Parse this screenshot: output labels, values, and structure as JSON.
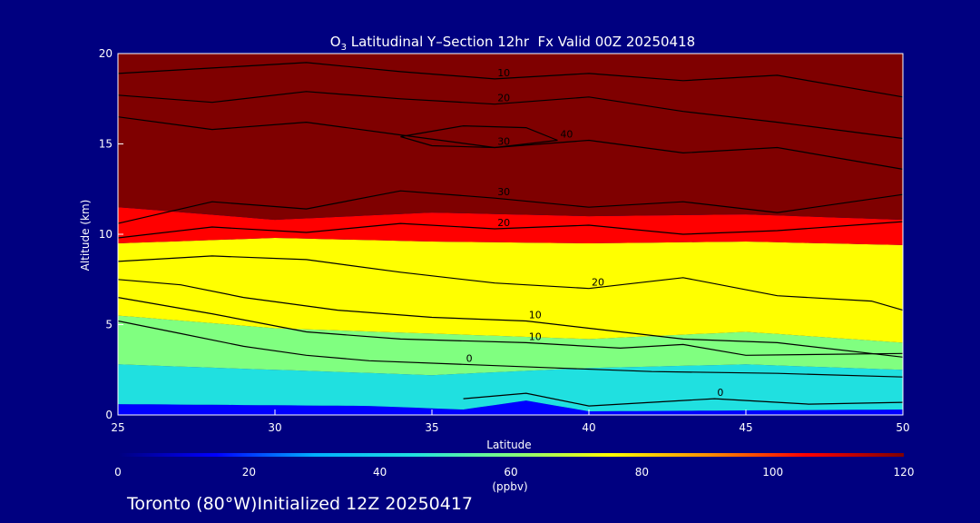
{
  "chart_data": {
    "type": "heatmap",
    "title": "O3 Latitudinal Y-Section 12hr  Fx Valid 00Z 20250418",
    "title_parts": {
      "species": "O",
      "subscript": "3",
      "rest": " Latitudinal Y–Section 12hr  Fx Valid 00Z 20250418"
    },
    "xlabel": "Latitude",
    "ylabel": "Altitude (km)",
    "xlim": [
      25,
      50
    ],
    "ylim": [
      0,
      20
    ],
    "x_ticks": [
      25,
      30,
      35,
      40,
      45,
      50
    ],
    "y_ticks": [
      0,
      5,
      10,
      15,
      20
    ],
    "x_tick_labels": [
      "25",
      "30",
      "35",
      "40",
      "45",
      "50"
    ],
    "y_tick_labels": [
      "0",
      "5",
      "10",
      "15",
      "20"
    ],
    "layers": [
      {
        "name": "surface",
        "z_bottom": 0,
        "z_top_by_lat": [
          [
            25,
            0.6
          ],
          [
            33,
            0.5
          ],
          [
            36,
            0.3
          ],
          [
            38,
            0.8
          ],
          [
            40,
            0.2
          ],
          [
            50,
            0.3
          ]
        ],
        "value": 10
      },
      {
        "name": "low-troposphere",
        "z_top_by_lat": [
          [
            25,
            2.8
          ],
          [
            30,
            2.5
          ],
          [
            35,
            2.2
          ],
          [
            40,
            2.6
          ],
          [
            45,
            2.8
          ],
          [
            50,
            2.5
          ]
        ],
        "value": 45
      },
      {
        "name": "mid-troposphere",
        "z_top_by_lat": [
          [
            25,
            5.5
          ],
          [
            30,
            4.8
          ],
          [
            35,
            4.5
          ],
          [
            40,
            4.2
          ],
          [
            45,
            4.6
          ],
          [
            50,
            4.0
          ]
        ],
        "value": 58
      },
      {
        "name": "upper-troposphere",
        "z_top_by_lat": [
          [
            25,
            9.5
          ],
          [
            30,
            9.8
          ],
          [
            35,
            9.6
          ],
          [
            40,
            9.5
          ],
          [
            45,
            9.6
          ],
          [
            50,
            9.4
          ]
        ],
        "value": 75
      },
      {
        "name": "tropopause",
        "z_top_by_lat": [
          [
            25,
            11.5
          ],
          [
            30,
            10.8
          ],
          [
            35,
            11.2
          ],
          [
            40,
            11.0
          ],
          [
            45,
            11.1
          ],
          [
            50,
            10.8
          ]
        ],
        "value": 100
      },
      {
        "name": "stratosphere",
        "z_top_by_lat": [
          [
            25,
            20
          ],
          [
            50,
            20
          ]
        ],
        "value": 120
      }
    ],
    "contours": [
      {
        "label": "0",
        "points": [
          [
            25,
            5.2
          ],
          [
            27,
            4.5
          ],
          [
            29,
            3.8
          ],
          [
            31,
            3.3
          ],
          [
            33,
            3.0
          ],
          [
            36,
            2.8
          ],
          [
            39,
            2.6
          ],
          [
            42,
            2.4
          ],
          [
            46,
            2.3
          ],
          [
            50,
            2.1
          ]
        ]
      },
      {
        "label": "0",
        "points": [
          [
            36,
            0.9
          ],
          [
            38,
            1.2
          ],
          [
            40,
            0.5
          ],
          [
            44,
            0.9
          ],
          [
            47,
            0.6
          ],
          [
            50,
            0.7
          ]
        ]
      },
      {
        "label": "10",
        "points": [
          [
            25,
            7.5
          ],
          [
            27,
            7.2
          ],
          [
            29,
            6.5
          ],
          [
            32,
            5.8
          ],
          [
            35,
            5.4
          ],
          [
            38,
            5.2
          ],
          [
            40,
            4.8
          ],
          [
            43,
            4.2
          ],
          [
            46,
            4.0
          ],
          [
            50,
            3.2
          ]
        ]
      },
      {
        "label": "10",
        "points": [
          [
            25,
            6.5
          ],
          [
            28,
            5.6
          ],
          [
            31,
            4.6
          ],
          [
            34,
            4.2
          ],
          [
            38,
            4.0
          ],
          [
            41,
            3.7
          ],
          [
            43,
            3.9
          ],
          [
            45,
            3.3
          ],
          [
            50,
            3.4
          ]
        ]
      },
      {
        "label": "20",
        "points": [
          [
            25,
            8.5
          ],
          [
            28,
            8.8
          ],
          [
            31,
            8.6
          ],
          [
            34,
            7.9
          ],
          [
            37,
            7.3
          ],
          [
            40,
            7.0
          ],
          [
            43,
            7.6
          ],
          [
            46,
            6.6
          ],
          [
            49,
            6.3
          ],
          [
            50,
            5.8
          ]
        ]
      },
      {
        "label": "20",
        "points": [
          [
            25,
            9.8
          ],
          [
            28,
            10.4
          ],
          [
            31,
            10.1
          ],
          [
            34,
            10.6
          ],
          [
            37,
            10.3
          ],
          [
            40,
            10.5
          ],
          [
            43,
            10.0
          ],
          [
            46,
            10.2
          ],
          [
            50,
            10.7
          ]
        ]
      },
      {
        "label": "30",
        "points": [
          [
            25,
            10.6
          ],
          [
            28,
            11.8
          ],
          [
            31,
            11.4
          ],
          [
            34,
            12.4
          ],
          [
            37,
            12.0
          ],
          [
            40,
            11.5
          ],
          [
            43,
            11.8
          ],
          [
            46,
            11.2
          ],
          [
            50,
            12.2
          ]
        ]
      },
      {
        "label": "30",
        "points": [
          [
            25,
            16.5
          ],
          [
            28,
            15.8
          ],
          [
            31,
            16.2
          ],
          [
            34,
            15.5
          ],
          [
            37,
            14.8
          ],
          [
            40,
            15.2
          ],
          [
            43,
            14.5
          ],
          [
            46,
            14.8
          ],
          [
            50,
            13.6
          ]
        ]
      },
      {
        "label": "20",
        "points": [
          [
            25,
            17.7
          ],
          [
            28,
            17.3
          ],
          [
            31,
            17.9
          ],
          [
            34,
            17.5
          ],
          [
            37,
            17.2
          ],
          [
            40,
            17.6
          ],
          [
            43,
            16.8
          ],
          [
            46,
            16.2
          ],
          [
            50,
            15.3
          ]
        ]
      },
      {
        "label": "10",
        "points": [
          [
            25,
            18.9
          ],
          [
            28,
            19.2
          ],
          [
            31,
            19.5
          ],
          [
            34,
            19.0
          ],
          [
            37,
            18.6
          ],
          [
            40,
            18.9
          ],
          [
            43,
            18.5
          ],
          [
            46,
            18.8
          ],
          [
            50,
            17.6
          ]
        ]
      },
      {
        "label": "40",
        "points": [
          [
            34,
            15.4
          ],
          [
            36,
            16.0
          ],
          [
            38,
            15.9
          ],
          [
            39,
            15.2
          ],
          [
            37,
            14.8
          ],
          [
            35,
            14.9
          ],
          [
            34,
            15.4
          ]
        ]
      }
    ],
    "colorbar": {
      "range": [
        0,
        120
      ],
      "ticks": [
        0,
        20,
        40,
        60,
        80,
        100,
        120
      ],
      "tick_labels": [
        "0",
        "20",
        "40",
        "60",
        "80",
        "100",
        "120"
      ],
      "unit": "(ppbv)",
      "stops": [
        "#00007f",
        "#0000ff",
        "#00b0ff",
        "#20e0e0",
        "#80ff80",
        "#ffff00",
        "#ff9000",
        "#ff0000",
        "#7f0000"
      ]
    },
    "footer": "Toronto (80°W)Initialized 12Z 20250417"
  },
  "colors": {
    "background": "#000080",
    "text": "#ffffff",
    "contour": "#000000"
  }
}
